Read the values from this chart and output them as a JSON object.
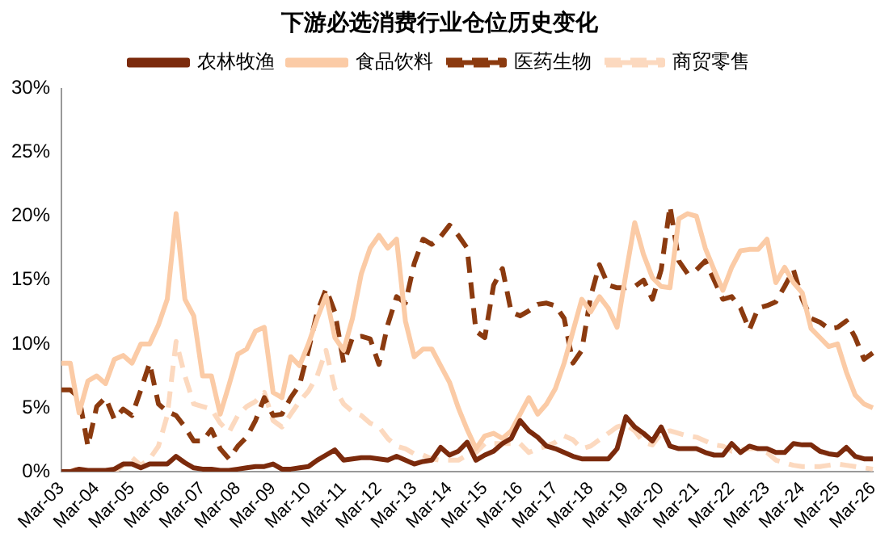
{
  "chart_data": {
    "type": "line",
    "title": "下游必选消费行业仓位历史变化",
    "categories": [
      "Mar-03",
      null,
      null,
      null,
      "Mar-04",
      null,
      null,
      null,
      "Mar-05",
      null,
      null,
      null,
      "Mar-06",
      null,
      null,
      null,
      "Mar-07",
      null,
      null,
      null,
      "Mar-08",
      null,
      null,
      null,
      "Mar-09",
      null,
      null,
      null,
      "Mar-10",
      null,
      null,
      null,
      "Mar-11",
      null,
      null,
      null,
      "Mar-12",
      null,
      null,
      null,
      "Mar-13",
      null,
      null,
      null,
      "Mar-14",
      null,
      null,
      null,
      "Mar-15",
      null,
      null,
      null,
      "Mar-16",
      null,
      null,
      null,
      "Mar-17",
      null,
      null,
      null,
      "Mar-18",
      null,
      null,
      null,
      "Mar-19",
      null,
      null,
      null,
      "Mar-20",
      null,
      null,
      null,
      "Mar-21",
      null,
      null,
      null,
      "Mar-22",
      null,
      null,
      null,
      "Mar-23",
      null,
      null,
      null,
      "Mar-24",
      null,
      null,
      null,
      "Mar-25",
      null,
      null,
      null,
      "Mar-26"
    ],
    "series": [
      {
        "name": "农林牧渔",
        "color": "#7b2a0c",
        "line_style": "solid",
        "values": [
          0,
          0,
          0.2,
          0.1,
          0.1,
          0.1,
          0.2,
          0.6,
          0.6,
          0.3,
          0.6,
          0.6,
          0.6,
          1.2,
          0.7,
          0.3,
          0.2,
          0.2,
          0.1,
          0.1,
          0.2,
          0.3,
          0.4,
          0.4,
          0.6,
          0.2,
          0.2,
          0.3,
          0.4,
          0.9,
          1.3,
          1.7,
          0.9,
          1,
          1.1,
          1.1,
          1,
          0.9,
          1.2,
          0.9,
          0.6,
          0.8,
          0.9,
          1.9,
          1.3,
          1.6,
          2.3,
          0.9,
          1.3,
          1.6,
          2.2,
          2.6,
          4,
          3.2,
          2.7,
          2,
          1.8,
          1.5,
          1.2,
          1,
          1,
          1,
          1,
          1.8,
          4.3,
          3.5,
          3,
          2.4,
          3.5,
          2,
          1.8,
          1.8,
          1.8,
          1.5,
          1.3,
          1.3,
          2.2,
          1.5,
          2,
          1.8,
          1.8,
          1.5,
          1.5,
          2.2,
          2.1,
          2.1,
          1.6,
          1.4,
          1.3,
          1.9,
          1.2,
          1,
          1
        ]
      },
      {
        "name": "食品饮料",
        "color": "#fbcba6",
        "line_style": "solid",
        "values": [
          8.5,
          8.5,
          4.6,
          7.1,
          7.5,
          6.9,
          8.8,
          9.1,
          8.5,
          10,
          10,
          11.5,
          13.5,
          20.2,
          13.5,
          12.2,
          7.5,
          7.5,
          4.5,
          6.8,
          9.2,
          9.6,
          11,
          11.3,
          6.2,
          5.8,
          9,
          8.3,
          10,
          12,
          13.8,
          10.5,
          9.5,
          12,
          15.5,
          17.5,
          18.5,
          17.5,
          18.2,
          11.8,
          9,
          9.6,
          9.6,
          8.3,
          7,
          5,
          3.3,
          1.8,
          2.8,
          3,
          2.6,
          3.2,
          4.5,
          5.8,
          4.5,
          5.3,
          6.5,
          8.5,
          11,
          13.5,
          12.5,
          13.7,
          12.8,
          11.3,
          15.5,
          19.5,
          17,
          15.2,
          14.5,
          14.4,
          19.8,
          20.2,
          20,
          17.5,
          15.8,
          14.2,
          16,
          17.3,
          17.4,
          17.4,
          18.2,
          14.8,
          16,
          14.8,
          14,
          11.2,
          10.5,
          9.8,
          10,
          7.8,
          6,
          5.3,
          5
        ]
      },
      {
        "name": "医药生物",
        "color": "#8b3a0f",
        "line_style": "dashed",
        "values": [
          6.4,
          6.4,
          5.8,
          2,
          5.1,
          5.8,
          4.1,
          4.9,
          4.4,
          6.4,
          8.5,
          5.3,
          4.7,
          4.4,
          3.5,
          2.4,
          2.4,
          3.3,
          1.8,
          1,
          2,
          2.7,
          4,
          5.8,
          4.4,
          4.5,
          5.8,
          6.8,
          9.5,
          12.5,
          14.3,
          12.5,
          8.5,
          10.5,
          10.6,
          10.4,
          8.4,
          11.5,
          13.7,
          13.2,
          16.3,
          18.2,
          17.8,
          18.4,
          19.3,
          18.5,
          17.5,
          11,
          10.5,
          14.6,
          15.9,
          12.5,
          12.2,
          12.6,
          13.1,
          13.2,
          13,
          12,
          8.5,
          9.5,
          13.7,
          16.2,
          14.6,
          14.4,
          14.4,
          14.5,
          15,
          13.5,
          15.8,
          20.8,
          16.5,
          15.5,
          15.8,
          16.5,
          15,
          13.5,
          13.7,
          12.8,
          11.1,
          12.8,
          13,
          13.3,
          14.5,
          15.8,
          13.5,
          12,
          11.7,
          11.2,
          11.3,
          11.8,
          10.5,
          8.8,
          9.3
        ]
      },
      {
        "name": "商贸零售",
        "color": "#fcd9bf",
        "line_style": "dashed",
        "values": [
          0,
          0,
          0.3,
          0,
          0,
          0,
          0,
          0.5,
          1.1,
          0.5,
          1,
          2,
          4.4,
          10.2,
          7.5,
          5.3,
          5.1,
          4.9,
          3.8,
          3.1,
          4.4,
          5.1,
          5.5,
          6.2,
          4,
          3.5,
          4.5,
          5.5,
          6.3,
          7.5,
          9.5,
          6.5,
          5.3,
          4.7,
          4.4,
          3.8,
          3.5,
          2.6,
          2,
          1.8,
          1.4,
          1.3,
          1,
          0.9,
          0.9,
          0.9,
          1.3,
          1.5,
          2.2,
          2.2,
          2.2,
          2.2,
          2.2,
          1.5,
          1.8,
          2,
          2.3,
          2.8,
          2.5,
          1.8,
          2,
          2.5,
          3,
          3.5,
          3.7,
          3.2,
          2.3,
          2.1,
          3,
          3.2,
          3,
          2.8,
          2.7,
          2.4,
          2.1,
          2,
          1.6,
          1.7,
          1.8,
          1.8,
          1.5,
          0.9,
          0.7,
          0.5,
          0.4,
          0.4,
          0.4,
          0.5,
          0.6,
          0.5,
          0.4,
          0.3,
          0.2
        ]
      }
    ],
    "ylim": [
      0,
      30
    ],
    "yticks": [
      {
        "value": 0,
        "label": "0%"
      },
      {
        "value": 5,
        "label": "5%"
      },
      {
        "value": 10,
        "label": "10%"
      },
      {
        "value": 15,
        "label": "15%"
      },
      {
        "value": 20,
        "label": "20%"
      },
      {
        "value": 25,
        "label": "25%"
      },
      {
        "value": 30,
        "label": "30%"
      }
    ],
    "grid": false,
    "legend": "top",
    "marker": "none"
  }
}
